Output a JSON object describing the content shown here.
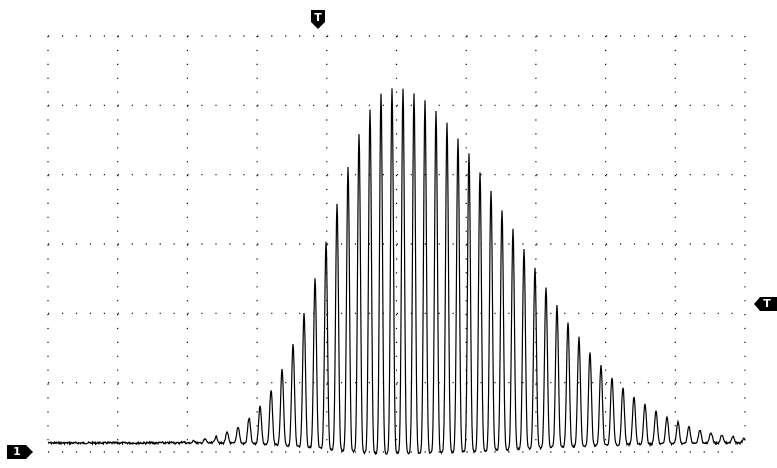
{
  "markers": {
    "trigger_time": "T",
    "trigger_level": "T",
    "channel": "1"
  }
}
